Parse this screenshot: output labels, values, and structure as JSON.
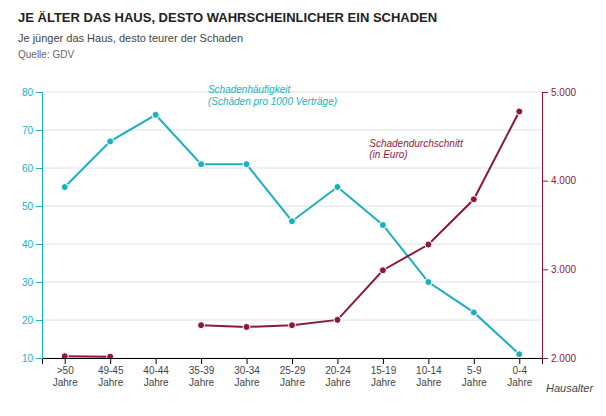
{
  "chart_data": {
    "type": "line",
    "title": "JE ÄLTER DAS HAUS, DESTO WAHRSCHEINLICHER EIN SCHADEN",
    "subtitle": "Je jünger das Haus, desto teurer der Schaden",
    "source": "Quelle: GDV",
    "x_label": "Hausalter",
    "categories": [
      ">50\nJahre",
      "49-45\nJahre",
      "40-44\nJahre",
      "35-39\nJahre",
      "30-34\nJahre",
      "25-29\nJahre",
      "20-24\nJahre",
      "15-19\nJahre",
      "10-14\nJahre",
      "5-9\nJahre",
      "0-4\nJahre"
    ],
    "series": [
      {
        "name": "Schadenhäufigkeit\n(Schäden pro 1000 Verträge)",
        "color": "#1ab0c0",
        "marker": "circle",
        "values": [
          55,
          67,
          74,
          61,
          61,
          46,
          55,
          45,
          30,
          22,
          11
        ]
      },
      {
        "name": "Schadendurchschnitt\n(in Euro)",
        "color": "#8b1a3a",
        "marker": "circle",
        "axis": "y2",
        "values": [
          2020,
          2015,
          null,
          2370,
          2350,
          2370,
          2430,
          2990,
          3280,
          3790,
          4780
        ]
      }
    ],
    "ylim": [
      10,
      80
    ],
    "yticks": [
      10,
      20,
      30,
      40,
      50,
      60,
      70,
      80
    ],
    "y2lim": [
      2000,
      5000
    ],
    "y2ticks": [
      {
        "value": 2000,
        "label": "2.000"
      },
      {
        "value": 3000,
        "label": "3.000"
      },
      {
        "value": 4000,
        "label": "4.000"
      },
      {
        "value": 5000,
        "label": "5.000"
      }
    ],
    "grid": true
  }
}
